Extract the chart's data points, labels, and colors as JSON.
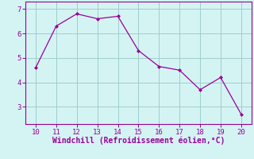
{
  "x": [
    10,
    11,
    12,
    13,
    14,
    15,
    16,
    17,
    18,
    19,
    20
  ],
  "y": [
    4.6,
    6.3,
    6.8,
    6.6,
    6.7,
    5.3,
    4.65,
    4.5,
    3.7,
    4.2,
    2.7
  ],
  "line_color": "#990099",
  "marker": "D",
  "marker_size": 2.0,
  "xlabel": "Windchill (Refroidissement éolien,°C)",
  "xlabel_color": "#990099",
  "bg_color": "#d4f4f4",
  "grid_color": "#a0cccc",
  "tick_color": "#990099",
  "spine_color": "#990099",
  "xlim": [
    9.5,
    20.5
  ],
  "ylim": [
    2.3,
    7.3
  ],
  "yticks": [
    3,
    4,
    5,
    6,
    7
  ],
  "xticks": [
    10,
    11,
    12,
    13,
    14,
    15,
    16,
    17,
    18,
    19,
    20
  ],
  "font_size": 6.5,
  "xlabel_fontsize": 7.0,
  "linewidth": 0.9
}
